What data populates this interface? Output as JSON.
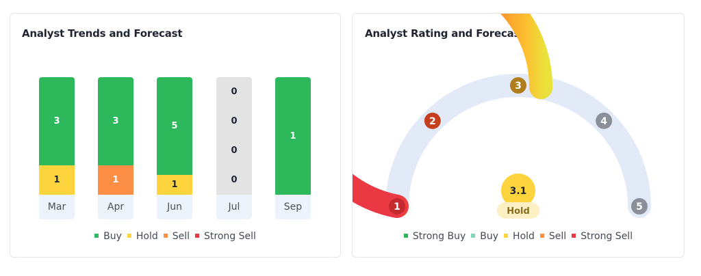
{
  "left_card": {
    "title": "Analyst Trends and Forecast"
  },
  "right_card": {
    "title": "Analyst Rating and Forecast",
    "info_icon": "info-icon",
    "gauge": {
      "stops": [
        "1",
        "2",
        "3",
        "4",
        "5"
      ],
      "value": "3.1",
      "value_label": "Hold"
    }
  },
  "colors": {
    "buy": "#2eb85c",
    "hold": "#fdd43e",
    "sell": "#fc8e46",
    "strong_sell": "#ea3943",
    "strong_buy": "#2eb85c",
    "buy_light": "#7fd8b4",
    "empty": "#e3e3e3",
    "gauge_track": "#e2e9f7"
  },
  "chart_data": [
    {
      "type": "bar",
      "stacked": true,
      "title": "Analyst Trends and Forecast",
      "categories": [
        "Mar",
        "Apr",
        "Jun",
        "Jul",
        "Sep"
      ],
      "series": [
        {
          "name": "Buy",
          "values": [
            3,
            3,
            5,
            0,
            1
          ],
          "labels": [
            "3",
            "3",
            "5",
            "0",
            "1"
          ]
        },
        {
          "name": "Hold",
          "values": [
            1,
            0,
            1,
            0,
            0
          ],
          "labels": [
            "1",
            "",
            "1",
            "0",
            ""
          ]
        },
        {
          "name": "Sell",
          "values": [
            0,
            1,
            0,
            0,
            0
          ],
          "labels": [
            "",
            "1",
            "",
            "0",
            ""
          ]
        },
        {
          "name": "Strong Sell",
          "values": [
            0,
            0,
            0,
            0,
            0
          ],
          "labels": [
            "",
            "",
            "",
            "0",
            ""
          ]
        }
      ],
      "legend": [
        "Buy",
        "Hold",
        "Sell",
        "Strong Sell"
      ],
      "legend_position": "bottom"
    },
    {
      "type": "gauge",
      "title": "Analyst Rating and Forecast",
      "range": [
        1,
        5
      ],
      "stops": [
        1,
        2,
        3,
        4,
        5
      ],
      "value": 3.1,
      "value_label": "Hold",
      "legend": [
        "Strong Buy",
        "Buy",
        "Hold",
        "Sell",
        "Strong Sell"
      ],
      "legend_position": "bottom"
    }
  ],
  "left_legend": [
    {
      "label": "Buy",
      "color": "#2eb85c"
    },
    {
      "label": "Hold",
      "color": "#fdd43e"
    },
    {
      "label": "Sell",
      "color": "#fc8e46"
    },
    {
      "label": "Strong Sell",
      "color": "#ea3943"
    }
  ],
  "right_legend": [
    {
      "label": "Strong Buy",
      "color": "#2eb85c"
    },
    {
      "label": "Buy",
      "color": "#7fd8b4"
    },
    {
      "label": "Hold",
      "color": "#fdd43e"
    },
    {
      "label": "Sell",
      "color": "#fc8e46"
    },
    {
      "label": "Strong Sell",
      "color": "#ea3943"
    }
  ]
}
